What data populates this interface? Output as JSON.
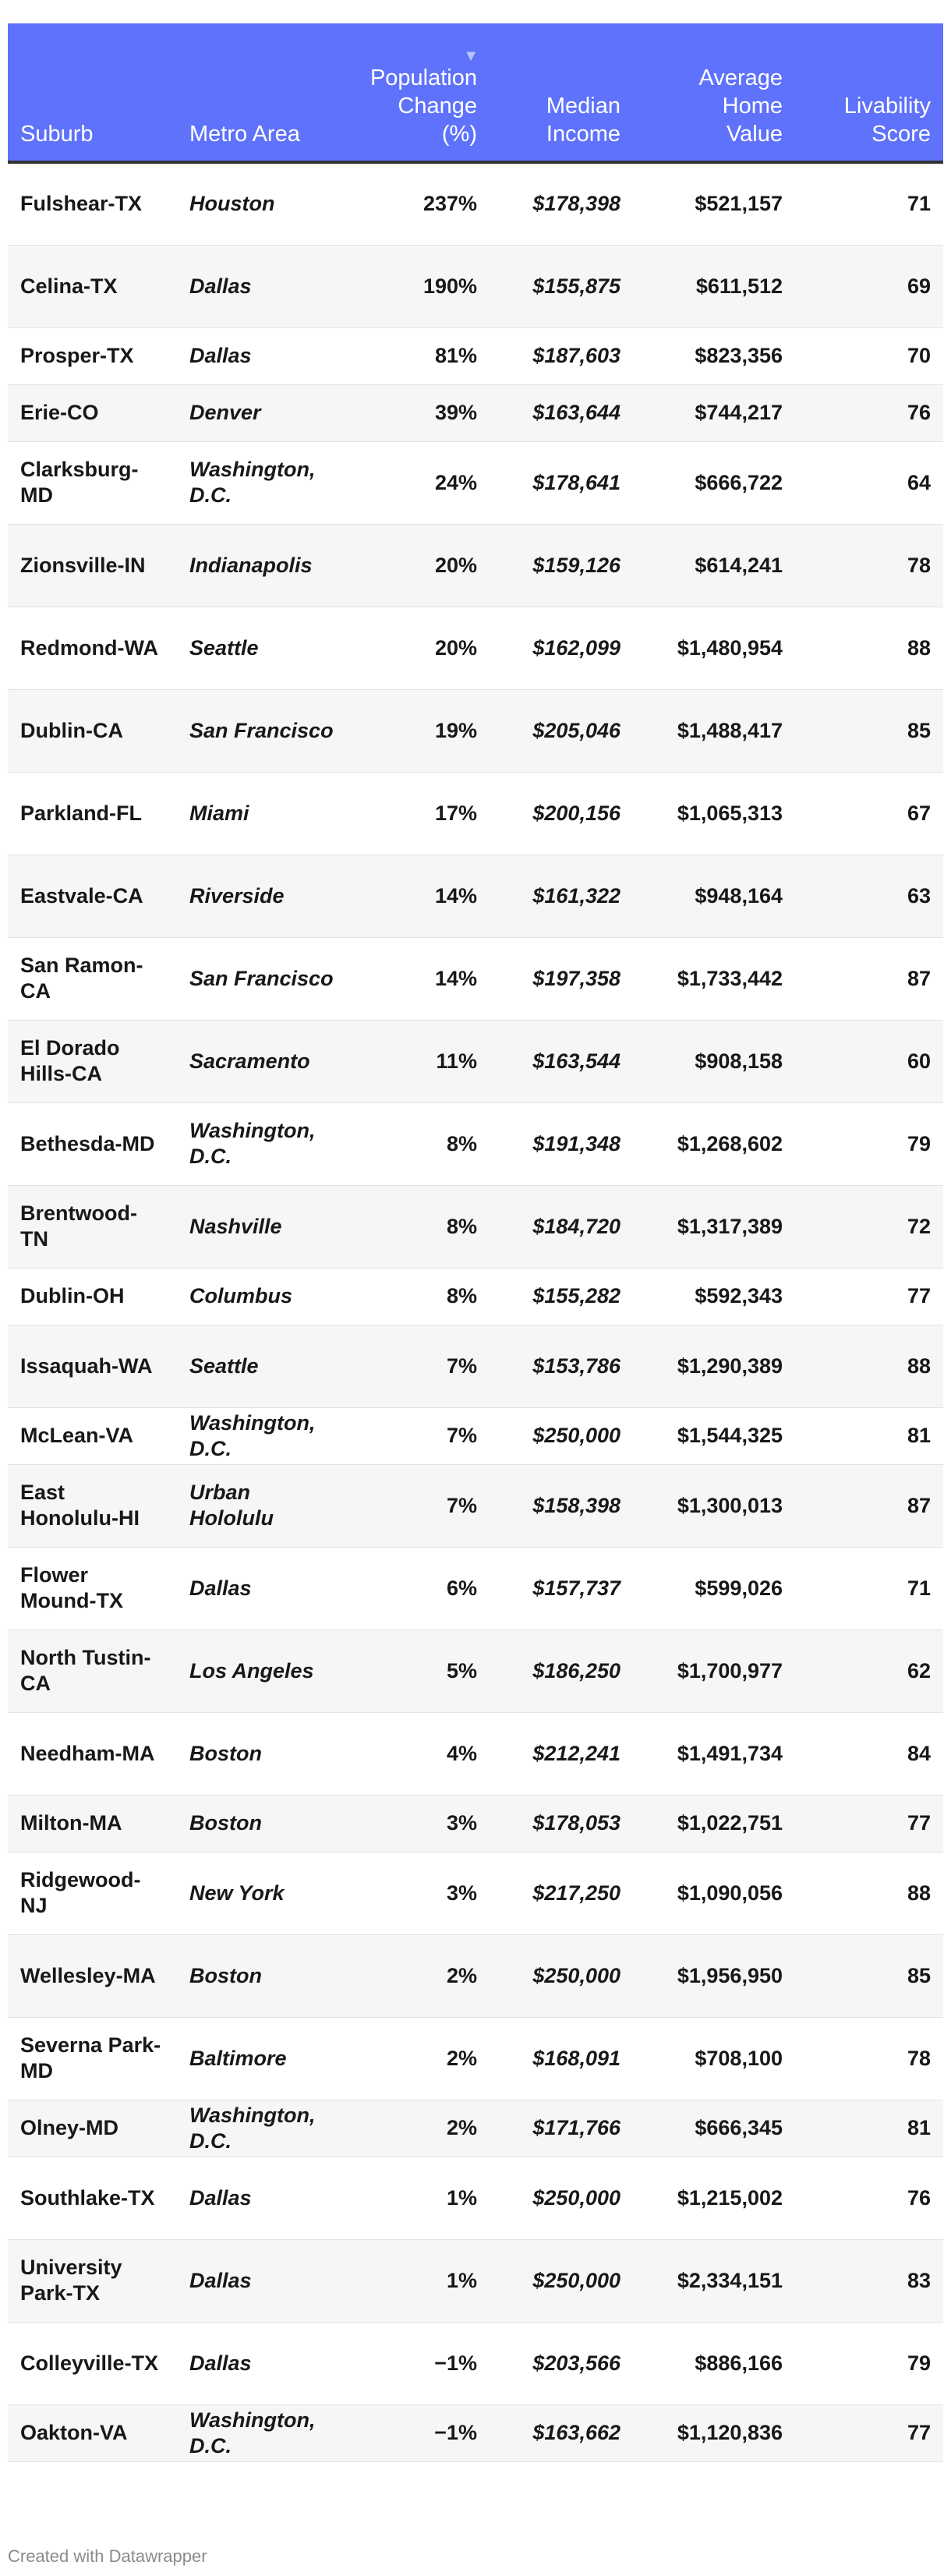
{
  "chart_data": {
    "type": "table",
    "columns": [
      "Suburb",
      "Metro Area",
      "Population Change (%)",
      "Median Income",
      "Average Home Value",
      "Livability Score"
    ],
    "header": {
      "suburb": "Suburb",
      "metro": "Metro Area",
      "pop_line1": "Population",
      "pop_line2": "Change",
      "pop_line3": "(%)",
      "income_line1": "Median",
      "income_line2": "Income",
      "home_line1": "Average",
      "home_line2": "Home",
      "home_line3": "Value",
      "score_line1": "Livability",
      "score_line2": "Score"
    },
    "sorted_by": "Population Change (%)",
    "rows": [
      {
        "suburb": "Fulshear-TX",
        "metro": "Houston",
        "pop_change": "237%",
        "income": "$178,398",
        "home_value": "$521,157",
        "score": "71"
      },
      {
        "suburb": "Celina-TX",
        "metro": "Dallas",
        "pop_change": "190%",
        "income": "$155,875",
        "home_value": "$611,512",
        "score": "69"
      },
      {
        "suburb": "Prosper-TX",
        "metro": "Dallas",
        "pop_change": "81%",
        "income": "$187,603",
        "home_value": "$823,356",
        "score": "70"
      },
      {
        "suburb": "Erie-CO",
        "metro": "Denver",
        "pop_change": "39%",
        "income": "$163,644",
        "home_value": "$744,217",
        "score": "76"
      },
      {
        "suburb": "Clarksburg-MD",
        "metro": "Washington, D.C.",
        "pop_change": "24%",
        "income": "$178,641",
        "home_value": "$666,722",
        "score": "64"
      },
      {
        "suburb": "Zionsville-IN",
        "metro": "Indianapolis",
        "pop_change": "20%",
        "income": "$159,126",
        "home_value": "$614,241",
        "score": "78"
      },
      {
        "suburb": "Redmond-WA",
        "metro": "Seattle",
        "pop_change": "20%",
        "income": "$162,099",
        "home_value": "$1,480,954",
        "score": "88"
      },
      {
        "suburb": "Dublin-CA",
        "metro": "San Francisco",
        "pop_change": "19%",
        "income": "$205,046",
        "home_value": "$1,488,417",
        "score": "85"
      },
      {
        "suburb": "Parkland-FL",
        "metro": "Miami",
        "pop_change": "17%",
        "income": "$200,156",
        "home_value": "$1,065,313",
        "score": "67"
      },
      {
        "suburb": "Eastvale-CA",
        "metro": "Riverside",
        "pop_change": "14%",
        "income": "$161,322",
        "home_value": "$948,164",
        "score": "63"
      },
      {
        "suburb": "San Ramon-CA",
        "metro": "San Francisco",
        "pop_change": "14%",
        "income": "$197,358",
        "home_value": "$1,733,442",
        "score": "87"
      },
      {
        "suburb": "El Dorado Hills-CA",
        "metro": "Sacramento",
        "pop_change": "11%",
        "income": "$163,544",
        "home_value": "$908,158",
        "score": "60"
      },
      {
        "suburb": "Bethesda-MD",
        "metro": "Washington, D.C.",
        "pop_change": "8%",
        "income": "$191,348",
        "home_value": "$1,268,602",
        "score": "79"
      },
      {
        "suburb": "Brentwood-TN",
        "metro": "Nashville",
        "pop_change": "8%",
        "income": "$184,720",
        "home_value": "$1,317,389",
        "score": "72"
      },
      {
        "suburb": "Dublin-OH",
        "metro": "Columbus",
        "pop_change": "8%",
        "income": "$155,282",
        "home_value": "$592,343",
        "score": "77"
      },
      {
        "suburb": "Issaquah-WA",
        "metro": "Seattle",
        "pop_change": "7%",
        "income": "$153,786",
        "home_value": "$1,290,389",
        "score": "88"
      },
      {
        "suburb": "McLean-VA",
        "metro": "Washington, D.C.",
        "pop_change": "7%",
        "income": "$250,000",
        "home_value": "$1,544,325",
        "score": "81"
      },
      {
        "suburb": "East Honolulu-HI",
        "metro": "Urban Hololulu",
        "pop_change": "7%",
        "income": "$158,398",
        "home_value": "$1,300,013",
        "score": "87"
      },
      {
        "suburb": "Flower Mound-TX",
        "metro": "Dallas",
        "pop_change": "6%",
        "income": "$157,737",
        "home_value": "$599,026",
        "score": "71"
      },
      {
        "suburb": "North Tustin-CA",
        "metro": "Los Angeles",
        "pop_change": "5%",
        "income": "$186,250",
        "home_value": "$1,700,977",
        "score": "62"
      },
      {
        "suburb": "Needham-MA",
        "metro": "Boston",
        "pop_change": "4%",
        "income": "$212,241",
        "home_value": "$1,491,734",
        "score": "84"
      },
      {
        "suburb": "Milton-MA",
        "metro": "Boston",
        "pop_change": "3%",
        "income": "$178,053",
        "home_value": "$1,022,751",
        "score": "77"
      },
      {
        "suburb": "Ridgewood-NJ",
        "metro": "New York",
        "pop_change": "3%",
        "income": "$217,250",
        "home_value": "$1,090,056",
        "score": "88"
      },
      {
        "suburb": "Wellesley-MA",
        "metro": "Boston",
        "pop_change": "2%",
        "income": "$250,000",
        "home_value": "$1,956,950",
        "score": "85"
      },
      {
        "suburb": "Severna Park-MD",
        "metro": "Baltimore",
        "pop_change": "2%",
        "income": "$168,091",
        "home_value": "$708,100",
        "score": "78"
      },
      {
        "suburb": "Olney-MD",
        "metro": "Washington, D.C.",
        "pop_change": "2%",
        "income": "$171,766",
        "home_value": "$666,345",
        "score": "81"
      },
      {
        "suburb": "Southlake-TX",
        "metro": "Dallas",
        "pop_change": "1%",
        "income": "$250,000",
        "home_value": "$1,215,002",
        "score": "76"
      },
      {
        "suburb": "University Park-TX",
        "metro": "Dallas",
        "pop_change": "1%",
        "income": "$250,000",
        "home_value": "$2,334,151",
        "score": "83"
      },
      {
        "suburb": "Colleyville-TX",
        "metro": "Dallas",
        "pop_change": "−1%",
        "income": "$203,566",
        "home_value": "$886,166",
        "score": "79"
      },
      {
        "suburb": "Oakton-VA",
        "metro": "Washington, D.C.",
        "pop_change": "−1%",
        "income": "$163,662",
        "home_value": "$1,120,836",
        "score": "77"
      }
    ],
    "header_color": "#5f72fb",
    "stripe_color": "#f6f6f6"
  },
  "footer": {
    "credit": "Created with Datawrapper"
  }
}
